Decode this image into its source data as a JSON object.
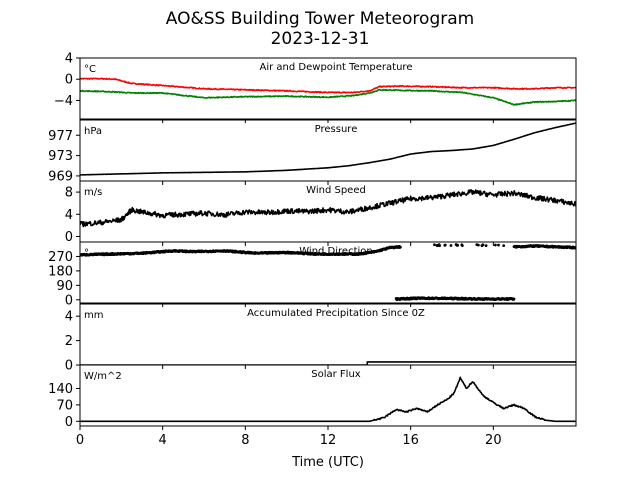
{
  "figure": {
    "title": "AO&SS Building Tower Meteorogram",
    "subtitle": "2023-12-31",
    "xlabel": "Time (UTC)",
    "xlim": [
      0,
      24
    ],
    "xticks": [
      0,
      4,
      8,
      12,
      16,
      20
    ],
    "xtick_labels": [
      "0",
      "4",
      "8",
      "12",
      "16",
      "20"
    ]
  },
  "chart_data": [
    {
      "type": "line",
      "title": "Air and Dewpoint Temperature",
      "unit": "°C",
      "ylim": [
        -7.5,
        4
      ],
      "yticks": [
        4,
        0,
        -4
      ],
      "ytick_labels": [
        "4",
        "0",
        "−4"
      ],
      "x": [
        0,
        1,
        1.7,
        2.5,
        4,
        6,
        8,
        10,
        12,
        13.2,
        14,
        14.5,
        15.5,
        17,
        18.5,
        20,
        21,
        22,
        23,
        24
      ],
      "series": [
        {
          "color": "#ff0000",
          "values": [
            0.1,
            0.1,
            0,
            -0.8,
            -1.2,
            -1.8,
            -2.0,
            -2.2,
            -2.5,
            -2.5,
            -2.2,
            -1.4,
            -1.3,
            -1.4,
            -1.6,
            -1.6,
            -1.8,
            -1.8,
            -1.6,
            -1.6
          ]
        },
        {
          "color": "#008000",
          "values": [
            -2.2,
            -2.3,
            -2.4,
            -2.6,
            -2.6,
            -3.5,
            -3.3,
            -3.2,
            -3.4,
            -3.1,
            -2.6,
            -2.0,
            -2.1,
            -2.2,
            -2.5,
            -3.5,
            -4.8,
            -4.3,
            -4.2,
            -4.0
          ]
        }
      ]
    },
    {
      "type": "line",
      "title": "Pressure",
      "unit": "hPa",
      "ylim": [
        968,
        980
      ],
      "yticks": [
        977,
        973,
        969
      ],
      "ytick_labels": [
        "977",
        "973",
        "969"
      ],
      "x": [
        0,
        2,
        4,
        6,
        8,
        10,
        12,
        13,
        14,
        15,
        16,
        17,
        18,
        19,
        20,
        21,
        22,
        23,
        24
      ],
      "series": [
        {
          "color": "#000000",
          "values": [
            969.2,
            969.4,
            969.6,
            969.7,
            969.8,
            970.1,
            970.6,
            971.0,
            971.6,
            972.3,
            973.3,
            973.8,
            974.0,
            974.3,
            975.0,
            976.2,
            977.5,
            978.5,
            979.4
          ]
        }
      ]
    },
    {
      "type": "line",
      "title": "Wind Speed",
      "unit": "m/s",
      "ylim": [
        -1,
        10
      ],
      "yticks": [
        8,
        4,
        0
      ],
      "ytick_labels": [
        "8",
        "4",
        "0"
      ],
      "x": [
        0,
        1,
        2,
        2.5,
        3,
        4,
        5,
        6,
        7,
        8,
        9,
        10,
        11,
        12,
        13,
        14,
        15,
        16,
        17,
        18,
        19,
        20,
        21,
        22,
        23,
        24
      ],
      "series": [
        {
          "color": "#000000",
          "values": [
            2.2,
            2.5,
            3.0,
            4.8,
            4.4,
            3.8,
            4.0,
            4.2,
            3.9,
            4.4,
            4.3,
            4.6,
            4.5,
            4.8,
            4.4,
            5.2,
            6.0,
            6.8,
            7.0,
            7.5,
            8.0,
            7.5,
            7.8,
            7.0,
            6.5,
            5.8
          ]
        }
      ]
    },
    {
      "type": "scatter",
      "title": "Wind Direction",
      "unit": "°",
      "ylim": [
        -20,
        360
      ],
      "yticks": [
        270,
        180,
        90,
        0
      ],
      "ytick_labels": [
        "270",
        "180",
        "90",
        "0"
      ],
      "series": [
        {
          "color": "#000000",
          "segments": [
            {
              "x": [
                0,
                1.5,
                3,
                4.5,
                5.5,
                7,
                8.5,
                10,
                11.5,
                12.5,
                13.5,
                14.3,
                15,
                15.5
              ],
              "y": [
                280,
                285,
                290,
                305,
                300,
                305,
                290,
                295,
                285,
                285,
                285,
                300,
                325,
                330
              ]
            },
            {
              "x": [
                17,
                20.5
              ],
              "y": [
                340,
                340
              ]
            },
            {
              "x": [
                21,
                22,
                23,
                24
              ],
              "y": [
                330,
                335,
                330,
                325
              ]
            },
            {
              "x": [
                15.3,
                16.5,
                18,
                19.5,
                21
              ],
              "y": [
                5,
                10,
                8,
                5,
                5
              ]
            }
          ]
        }
      ]
    },
    {
      "type": "line",
      "title": "Accumulated Precipitation Since 0Z",
      "unit": "mm",
      "ylim": [
        0,
        5
      ],
      "yticks": [
        4,
        2,
        0
      ],
      "ytick_labels": [
        "4",
        "2",
        "0"
      ],
      "x": [
        0,
        13.9,
        13.9,
        24
      ],
      "series": [
        {
          "color": "#000000",
          "values": [
            0,
            0,
            0.25,
            0.25
          ]
        }
      ]
    },
    {
      "type": "line",
      "title": "Solar Flux",
      "unit": "W/m^2",
      "ylim": [
        -20,
        240
      ],
      "yticks": [
        140,
        70,
        0
      ],
      "ytick_labels": [
        "140",
        "70",
        "0"
      ],
      "x": [
        0,
        14,
        14.7,
        15.3,
        15.8,
        16.3,
        16.8,
        17.3,
        17.8,
        18.1,
        18.4,
        18.7,
        19,
        19.5,
        20,
        20.5,
        21,
        21.5,
        22,
        22.5,
        23,
        24
      ],
      "series": [
        {
          "color": "#000000",
          "values": [
            0,
            0,
            15,
            50,
            40,
            55,
            40,
            70,
            95,
            120,
            185,
            140,
            170,
            110,
            80,
            55,
            70,
            55,
            20,
            5,
            0,
            0
          ]
        }
      ]
    }
  ]
}
